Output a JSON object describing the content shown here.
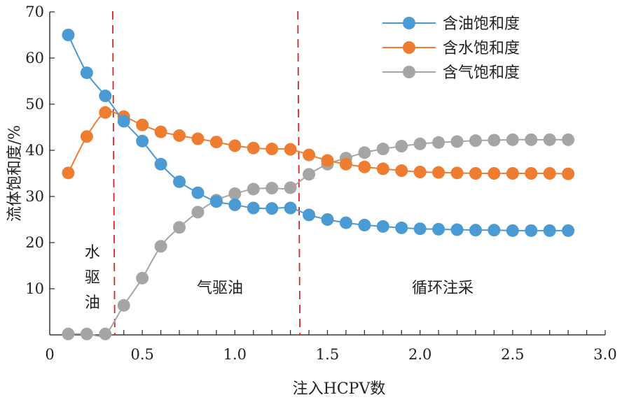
{
  "chart_data": {
    "type": "line",
    "title": "",
    "xlabel": "注入HCPV数",
    "ylabel": "流体饱和度/%",
    "xlim": [
      0,
      3.0
    ],
    "ylim": [
      0,
      70
    ],
    "x_ticks": [
      "0",
      "0.5",
      "1.0",
      "1.5",
      "2.0",
      "2.5",
      "3.0"
    ],
    "y_ticks": [
      "10",
      "20",
      "30",
      "40",
      "50",
      "60",
      "70"
    ],
    "grid": false,
    "legend_position": "top-right",
    "series": [
      {
        "name": "含油饱和度",
        "color": "#4a9ad3",
        "points": [
          [
            0.1,
            65
          ],
          [
            0.2,
            56.8
          ],
          [
            0.3,
            51.8
          ],
          [
            0.4,
            46.3
          ],
          [
            0.5,
            42
          ],
          [
            0.6,
            37
          ],
          [
            0.7,
            33.2
          ],
          [
            0.8,
            30.8
          ],
          [
            0.9,
            28.9
          ],
          [
            1.0,
            28.2
          ],
          [
            1.1,
            27.5
          ],
          [
            1.2,
            27.4
          ],
          [
            1.3,
            27.5
          ],
          [
            1.4,
            26
          ],
          [
            1.5,
            25
          ],
          [
            1.6,
            24.3
          ],
          [
            1.7,
            23.8
          ],
          [
            1.8,
            23.5
          ],
          [
            1.9,
            23.2
          ],
          [
            2.0,
            23
          ],
          [
            2.1,
            22.9
          ],
          [
            2.2,
            22.8
          ],
          [
            2.3,
            22.7
          ],
          [
            2.4,
            22.7
          ],
          [
            2.5,
            22.6
          ],
          [
            2.6,
            22.6
          ],
          [
            2.7,
            22.6
          ],
          [
            2.8,
            22.6
          ]
        ]
      },
      {
        "name": "含水饱和度",
        "color": "#ee7d31",
        "points": [
          [
            0.1,
            35.1
          ],
          [
            0.2,
            43
          ],
          [
            0.3,
            48.2
          ],
          [
            0.4,
            47.3
          ],
          [
            0.5,
            45.5
          ],
          [
            0.6,
            44
          ],
          [
            0.7,
            43.2
          ],
          [
            0.8,
            42.5
          ],
          [
            0.9,
            41.8
          ],
          [
            1.0,
            41
          ],
          [
            1.1,
            40.5
          ],
          [
            1.2,
            40.3
          ],
          [
            1.3,
            40.2
          ],
          [
            1.4,
            39
          ],
          [
            1.5,
            37.8
          ],
          [
            1.6,
            37
          ],
          [
            1.7,
            36.4
          ],
          [
            1.8,
            36
          ],
          [
            1.9,
            35.6
          ],
          [
            2.0,
            35.3
          ],
          [
            2.1,
            35.2
          ],
          [
            2.2,
            35.1
          ],
          [
            2.3,
            35
          ],
          [
            2.4,
            35
          ],
          [
            2.5,
            35
          ],
          [
            2.6,
            35
          ],
          [
            2.7,
            35
          ],
          [
            2.8,
            34.9
          ]
        ]
      },
      {
        "name": "含气饱和度",
        "color": "#a5a5a5",
        "points": [
          [
            0.1,
            0.2
          ],
          [
            0.2,
            0.2
          ],
          [
            0.3,
            0.2
          ],
          [
            0.4,
            6.4
          ],
          [
            0.5,
            12.3
          ],
          [
            0.6,
            19.2
          ],
          [
            0.7,
            23.3
          ],
          [
            0.8,
            26.6
          ],
          [
            0.9,
            29.2
          ],
          [
            1.0,
            30.6
          ],
          [
            1.1,
            31.6
          ],
          [
            1.2,
            31.8
          ],
          [
            1.3,
            31.9
          ],
          [
            1.4,
            34.8
          ],
          [
            1.5,
            37
          ],
          [
            1.6,
            38.3
          ],
          [
            1.7,
            39.5
          ],
          [
            1.8,
            40.3
          ],
          [
            1.9,
            40.9
          ],
          [
            2.0,
            41.4
          ],
          [
            2.1,
            41.7
          ],
          [
            2.2,
            41.9
          ],
          [
            2.3,
            42.1
          ],
          [
            2.4,
            42.2
          ],
          [
            2.5,
            42.3
          ],
          [
            2.6,
            42.3
          ],
          [
            2.7,
            42.3
          ],
          [
            2.8,
            42.3
          ]
        ]
      }
    ],
    "phase_boundaries": [
      0.34,
      1.34
    ],
    "phase_boundary_color": "#d62728",
    "phase_labels": [
      {
        "text": "水驱油",
        "x": 0.2,
        "orientation": "vertical"
      },
      {
        "text": "气驱油",
        "x": 0.9,
        "orientation": "horizontal"
      },
      {
        "text": "循环注采",
        "x": 2.1,
        "orientation": "horizontal"
      }
    ]
  }
}
